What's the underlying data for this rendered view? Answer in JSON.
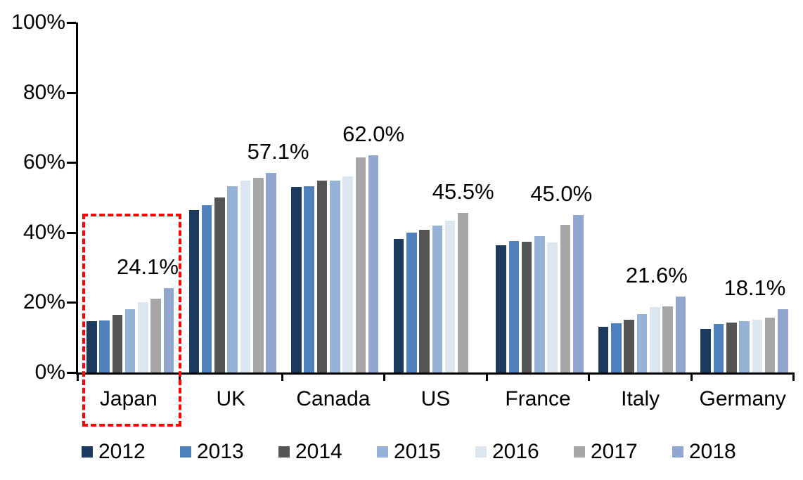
{
  "chart_data": {
    "type": "bar",
    "title": "",
    "xlabel": "",
    "ylabel": "",
    "categories": [
      "Japan",
      "UK",
      "Canada",
      "US",
      "France",
      "Italy",
      "Germany"
    ],
    "series": [
      {
        "name": "2012",
        "color": "#1C3A5E",
        "values": [
          14.7,
          46.3,
          53.0,
          38.2,
          36.3,
          13.1,
          12.4
        ]
      },
      {
        "name": "2013",
        "color": "#4F81BD",
        "values": [
          14.9,
          47.8,
          53.3,
          40.0,
          37.5,
          14.0,
          13.9
        ]
      },
      {
        "name": "2014",
        "color": "#555555",
        "values": [
          16.5,
          50.0,
          54.9,
          40.8,
          37.3,
          15.1,
          14.2
        ]
      },
      {
        "name": "2015",
        "color": "#95B3D7",
        "values": [
          18.1,
          53.2,
          54.8,
          42.0,
          39.0,
          16.7,
          14.6
        ]
      },
      {
        "name": "2016",
        "color": "#DCE6F1",
        "values": [
          20.1,
          54.9,
          56.1,
          43.4,
          37.1,
          18.7,
          15.1
        ]
      },
      {
        "name": "2017",
        "color": "#A6A6A6",
        "values": [
          21.1,
          55.7,
          61.4,
          45.5,
          42.2,
          18.9,
          15.6
        ]
      },
      {
        "name": "2018",
        "color": "#92A7CF",
        "values": [
          24.1,
          57.1,
          62.0,
          null,
          45.0,
          21.6,
          18.1
        ]
      }
    ],
    "data_labels": [
      "24.1%",
      "57.1%",
      "62.0%",
      "45.5%",
      "45.0%",
      "21.6%",
      "18.1%"
    ],
    "y_axis": {
      "tick_labels": [
        "100%",
        "80%",
        "60%",
        "40%",
        "20%",
        "0%"
      ],
      "min": 0,
      "max": 100,
      "grid": false
    },
    "legend": {
      "position": "bottom",
      "entries": [
        "2012",
        "2013",
        "2014",
        "2015",
        "2016",
        "2017",
        "2018"
      ]
    },
    "highlight_box": {
      "around_category": "Japan",
      "style": "dashed",
      "color": "#FF0000"
    }
  }
}
